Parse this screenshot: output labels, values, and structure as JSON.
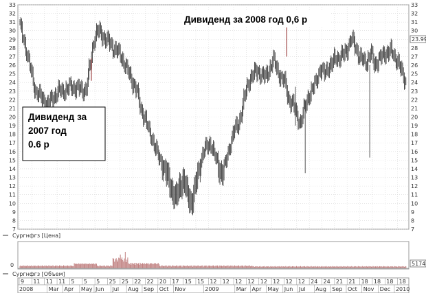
{
  "chart_data": {
    "type": "candlestick",
    "price_panel": {
      "ylim": [
        7,
        33
      ],
      "yticks": [
        7,
        8,
        9,
        10,
        11,
        12,
        13,
        14,
        15,
        16,
        17,
        18,
        19,
        20,
        21,
        22,
        23,
        24,
        25,
        26,
        27,
        28,
        29,
        30,
        31,
        32,
        33
      ],
      "last_value_label": "23.99",
      "legend": "Сургнфгз [Цена]",
      "grid": true,
      "weekly_close": [
        30.5,
        29,
        27,
        25,
        23,
        22.5,
        22,
        21.5,
        22,
        22.5,
        23,
        23,
        23.2,
        23.5,
        23.4,
        23.3,
        23.1,
        23.2,
        26,
        29,
        30,
        29.6,
        29,
        28.6,
        28,
        27.6,
        27,
        26,
        25,
        24,
        23,
        21,
        20,
        18.5,
        17.5,
        16,
        15,
        14,
        13,
        11.5,
        10.5,
        12,
        12.8,
        11,
        10,
        12,
        14,
        16,
        16.5,
        17,
        15.5,
        14,
        13.5,
        15,
        17,
        18.5,
        19,
        21,
        23,
        24.5,
        25,
        25.3,
        24.9,
        24.6,
        25.6,
        26.6,
        25.5,
        24.5,
        24,
        22,
        21.5,
        20.3,
        19.2,
        21,
        22.5,
        23,
        24.3,
        25.5,
        25,
        25.8,
        26,
        27,
        26.8,
        27.2,
        28,
        29,
        28.3,
        27,
        26.5,
        26.4,
        27.5,
        26,
        26.7,
        27,
        27.5,
        27.7,
        27,
        26.5,
        25,
        24
      ]
    },
    "annotations": [
      {
        "text_lines": [
          "Дивиденд за 2008 год 0,6 р"
        ],
        "position": "top-center"
      },
      {
        "text_lines": [
          "Дивиденд за",
          "2007 год",
          "0.6 р"
        ],
        "position": "left"
      }
    ],
    "volume_panel": {
      "legend": "Сургнфгз [Объем]",
      "zero_label": "0",
      "last_value_label": "5174",
      "bar_color": "#c08080"
    },
    "x_axis": {
      "day_ticks": [
        "9",
        "11",
        "11",
        "11",
        "5",
        "5",
        "5",
        "25",
        "25",
        "22",
        "22",
        "20",
        "17",
        "15",
        "15",
        "12",
        "12",
        "12",
        "12",
        "12",
        "12",
        "12",
        "12",
        "24",
        "24",
        "21",
        "21",
        "18",
        "18",
        "18",
        "18"
      ],
      "year_labels": [
        "2008",
        "2009",
        "2010"
      ],
      "month_labels": [
        "Mar",
        "Apr",
        "May",
        "Jun",
        "Jul",
        "Aug",
        "Sep",
        "Oct",
        "Nov",
        "Mar",
        "Apr",
        "May",
        "Jun",
        "Jul",
        "Aug",
        "Sep",
        "Oct",
        "Nov",
        "Dec"
      ]
    }
  }
}
